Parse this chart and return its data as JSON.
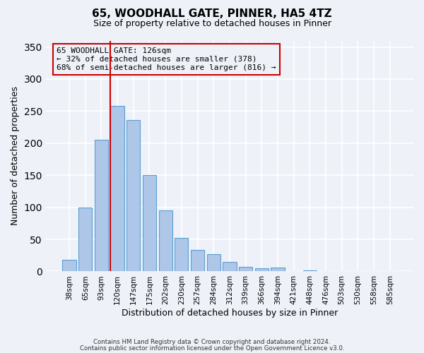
{
  "title": "65, WOODHALL GATE, PINNER, HA5 4TZ",
  "subtitle": "Size of property relative to detached houses in Pinner",
  "xlabel": "Distribution of detached houses by size in Pinner",
  "ylabel": "Number of detached properties",
  "bar_labels": [
    "38sqm",
    "65sqm",
    "93sqm",
    "120sqm",
    "147sqm",
    "175sqm",
    "202sqm",
    "230sqm",
    "257sqm",
    "284sqm",
    "312sqm",
    "339sqm",
    "366sqm",
    "394sqm",
    "421sqm",
    "448sqm",
    "476sqm",
    "503sqm",
    "530sqm",
    "558sqm",
    "585sqm"
  ],
  "bar_heights": [
    18,
    100,
    205,
    258,
    236,
    150,
    95,
    52,
    34,
    27,
    15,
    7,
    5,
    6,
    1,
    2,
    0,
    0,
    0,
    0,
    0
  ],
  "bar_color": "#aec6e8",
  "bar_edge_color": "#5a9fd4",
  "vline_x": 3,
  "vline_color": "#cc0000",
  "annotation_title": "65 WOODHALL GATE: 126sqm",
  "annotation_line1": "← 32% of detached houses are smaller (378)",
  "annotation_line2": "68% of semi-detached houses are larger (816) →",
  "annotation_box_color": "#cc0000",
  "ylim": [
    0,
    360
  ],
  "yticks": [
    0,
    50,
    100,
    150,
    200,
    250,
    300,
    350
  ],
  "footer1": "Contains HM Land Registry data © Crown copyright and database right 2024.",
  "footer2": "Contains public sector information licensed under the Open Government Licence v3.0.",
  "background_color": "#eef2f8"
}
